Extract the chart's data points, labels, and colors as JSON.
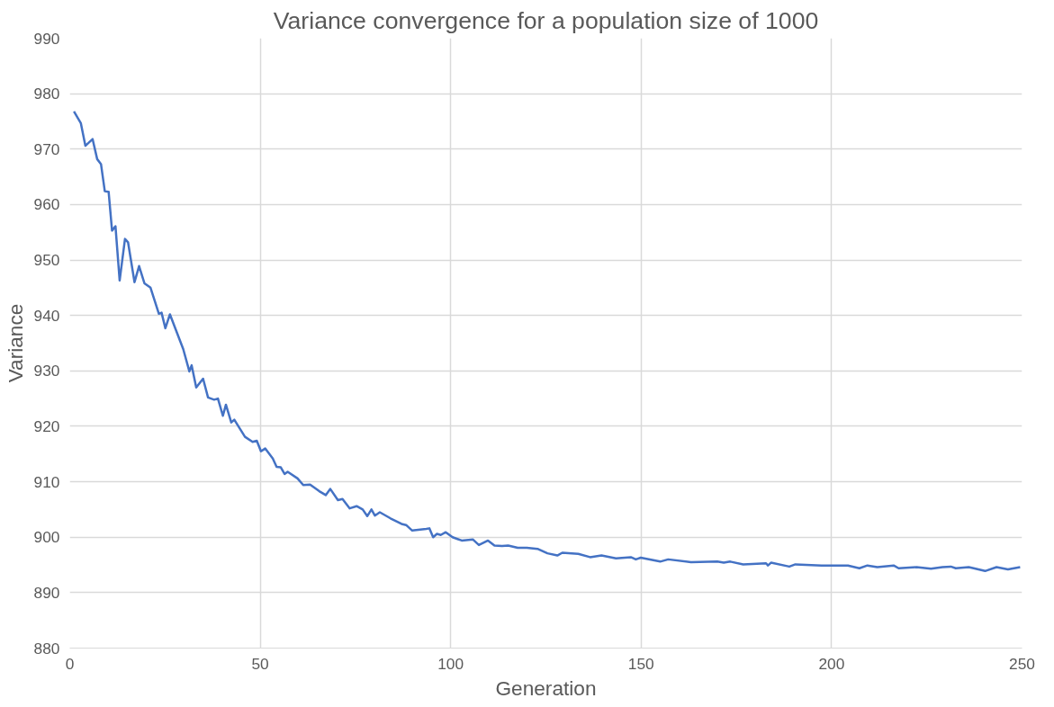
{
  "chart_data": {
    "type": "line",
    "title": "Variance convergence for a population size of 1000",
    "xlabel": "Generation",
    "ylabel": "Variance",
    "xlim": [
      0,
      250
    ],
    "xticks": [
      0,
      50,
      100,
      150,
      200,
      250
    ],
    "ylim": [
      880,
      990
    ],
    "yticks": [
      880,
      890,
      900,
      910,
      920,
      930,
      940,
      950,
      960,
      970,
      980,
      990
    ],
    "grid": true,
    "series": [
      {
        "color": "#4472c4",
        "x": [
          1.1,
          2.9,
          4.1,
          6,
          7.2,
          8.2,
          9.2,
          10.2,
          11.1,
          12,
          13.1,
          14.5,
          15.3,
          17,
          18.2,
          19.6,
          21.2,
          23.4,
          24.1,
          25.1,
          26.3,
          29.8,
          31.4,
          32,
          33.2,
          35,
          36.3,
          37.9,
          38.9,
          40.2,
          41,
          42.4,
          43.2,
          46,
          48,
          49.1,
          50.2,
          51.3,
          53.3,
          54.3,
          55.4,
          56.4,
          57.2,
          59.8,
          61.3,
          63.1,
          65.5,
          67.2,
          68.4,
          70.4,
          71.6,
          73.5,
          75.3,
          76.9,
          78.1,
          79.2,
          80.1,
          81.4,
          84.2,
          87.1,
          88.3,
          89.9,
          93.6,
          94.4,
          95.4,
          96.4,
          97.4,
          98.7,
          100.5,
          102.9,
          105.8,
          107.4,
          109.8,
          111.5,
          113.5,
          115.1,
          117.6,
          120,
          122.8,
          125.4,
          128,
          129.3,
          133.5,
          136.6,
          139.6,
          143.4,
          147.3,
          148.6,
          149.9,
          155,
          157.1,
          163.1,
          170,
          171.7,
          173.4,
          176.8,
          182.8,
          183.3,
          184.1,
          188.9,
          190.5,
          197.4,
          204.3,
          207.3,
          209.4,
          212,
          216.3,
          217.6,
          222.3,
          226.1,
          229.1,
          231.3,
          232.6,
          236,
          237.3,
          240.3,
          243.3,
          246.3,
          249.5
        ],
        "values": [
          976.8,
          974.7,
          970.6,
          971.8,
          968.2,
          967.3,
          962.4,
          962.3,
          955.3,
          956.1,
          946.3,
          953.8,
          953.2,
          946,
          948.9,
          945.8,
          945,
          940.3,
          940.5,
          937.7,
          940.2,
          933.9,
          929.9,
          931,
          927,
          928.6,
          925.2,
          924.8,
          925,
          921.9,
          923.9,
          920.7,
          921.2,
          918.1,
          917.2,
          917.4,
          915.5,
          916,
          914.2,
          912.7,
          912.6,
          911.4,
          911.8,
          910.6,
          909.4,
          909.5,
          908.3,
          907.6,
          908.7,
          906.7,
          906.9,
          905.2,
          905.6,
          905,
          903.8,
          905,
          903.9,
          904.5,
          903.4,
          902.4,
          902.2,
          901.2,
          901.5,
          901.6,
          900,
          900.6,
          900.4,
          900.9,
          900,
          899.4,
          899.6,
          898.6,
          899.4,
          898.5,
          898.4,
          898.5,
          898.1,
          898.1,
          897.9,
          897.1,
          896.7,
          897.2,
          897,
          896.4,
          896.7,
          896.2,
          896.4,
          896,
          896.3,
          895.6,
          896,
          895.5,
          895.6,
          895.4,
          895.6,
          895.1,
          895.3,
          894.9,
          895.4,
          894.7,
          895.1,
          894.9,
          894.9,
          894.4,
          894.9,
          894.6,
          894.9,
          894.4,
          894.6,
          894.3,
          894.6,
          894.7,
          894.4,
          894.6,
          894.4,
          893.9,
          894.6,
          894.2,
          894.6
        ]
      }
    ]
  }
}
